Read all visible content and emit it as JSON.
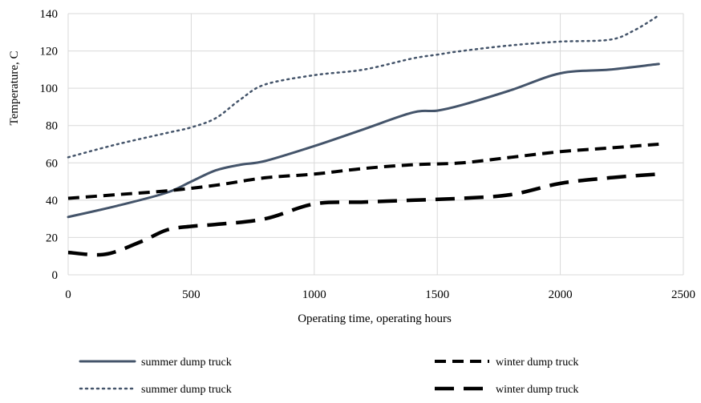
{
  "chart_data": {
    "type": "line",
    "title": "",
    "xlabel": "Operating time, operating hours",
    "ylabel": "Temperature, C",
    "xlim": [
      0,
      2500
    ],
    "ylim": [
      0,
      140
    ],
    "x_ticks": [
      0,
      500,
      1000,
      1500,
      2000,
      2500
    ],
    "y_ticks": [
      0,
      20,
      40,
      60,
      80,
      100,
      120,
      140
    ],
    "grid": true,
    "legend_position": "bottom",
    "series": [
      {
        "name": "summer dump truck",
        "style": "solid",
        "color": "#44546a",
        "x": [
          0,
          200,
          400,
          500,
          600,
          700,
          800,
          1000,
          1200,
          1400,
          1500,
          1600,
          1800,
          2000,
          2200,
          2400
        ],
        "y": [
          31,
          37,
          44,
          50,
          56,
          59,
          61,
          69,
          78,
          87,
          88,
          91,
          99,
          108,
          110,
          113
        ]
      },
      {
        "name": "winter dump truck",
        "style": "dashed",
        "color": "#000000",
        "x": [
          0,
          200,
          400,
          600,
          800,
          1000,
          1200,
          1400,
          1600,
          1800,
          2000,
          2200,
          2400
        ],
        "y": [
          41,
          43,
          45,
          48,
          52,
          54,
          57,
          59,
          60,
          63,
          66,
          68,
          70
        ]
      },
      {
        "name": "summer dump truck",
        "style": "dotted",
        "color": "#44546a",
        "x": [
          0,
          200,
          400,
          500,
          600,
          700,
          800,
          1000,
          1200,
          1400,
          1500,
          1600,
          1800,
          2000,
          2200,
          2300,
          2400
        ],
        "y": [
          63,
          70,
          76,
          79,
          84,
          94,
          102,
          107,
          110,
          116,
          118,
          120,
          123,
          125,
          126,
          131,
          139
        ]
      },
      {
        "name": "winter dump truck",
        "style": "longdash",
        "color": "#000000",
        "x": [
          0,
          150,
          300,
          400,
          500,
          600,
          800,
          1000,
          1200,
          1400,
          1600,
          1800,
          2000,
          2200,
          2400
        ],
        "y": [
          12,
          11,
          18,
          24,
          26,
          27,
          30,
          38,
          39,
          40,
          41,
          43,
          49,
          52,
          54
        ]
      }
    ]
  }
}
